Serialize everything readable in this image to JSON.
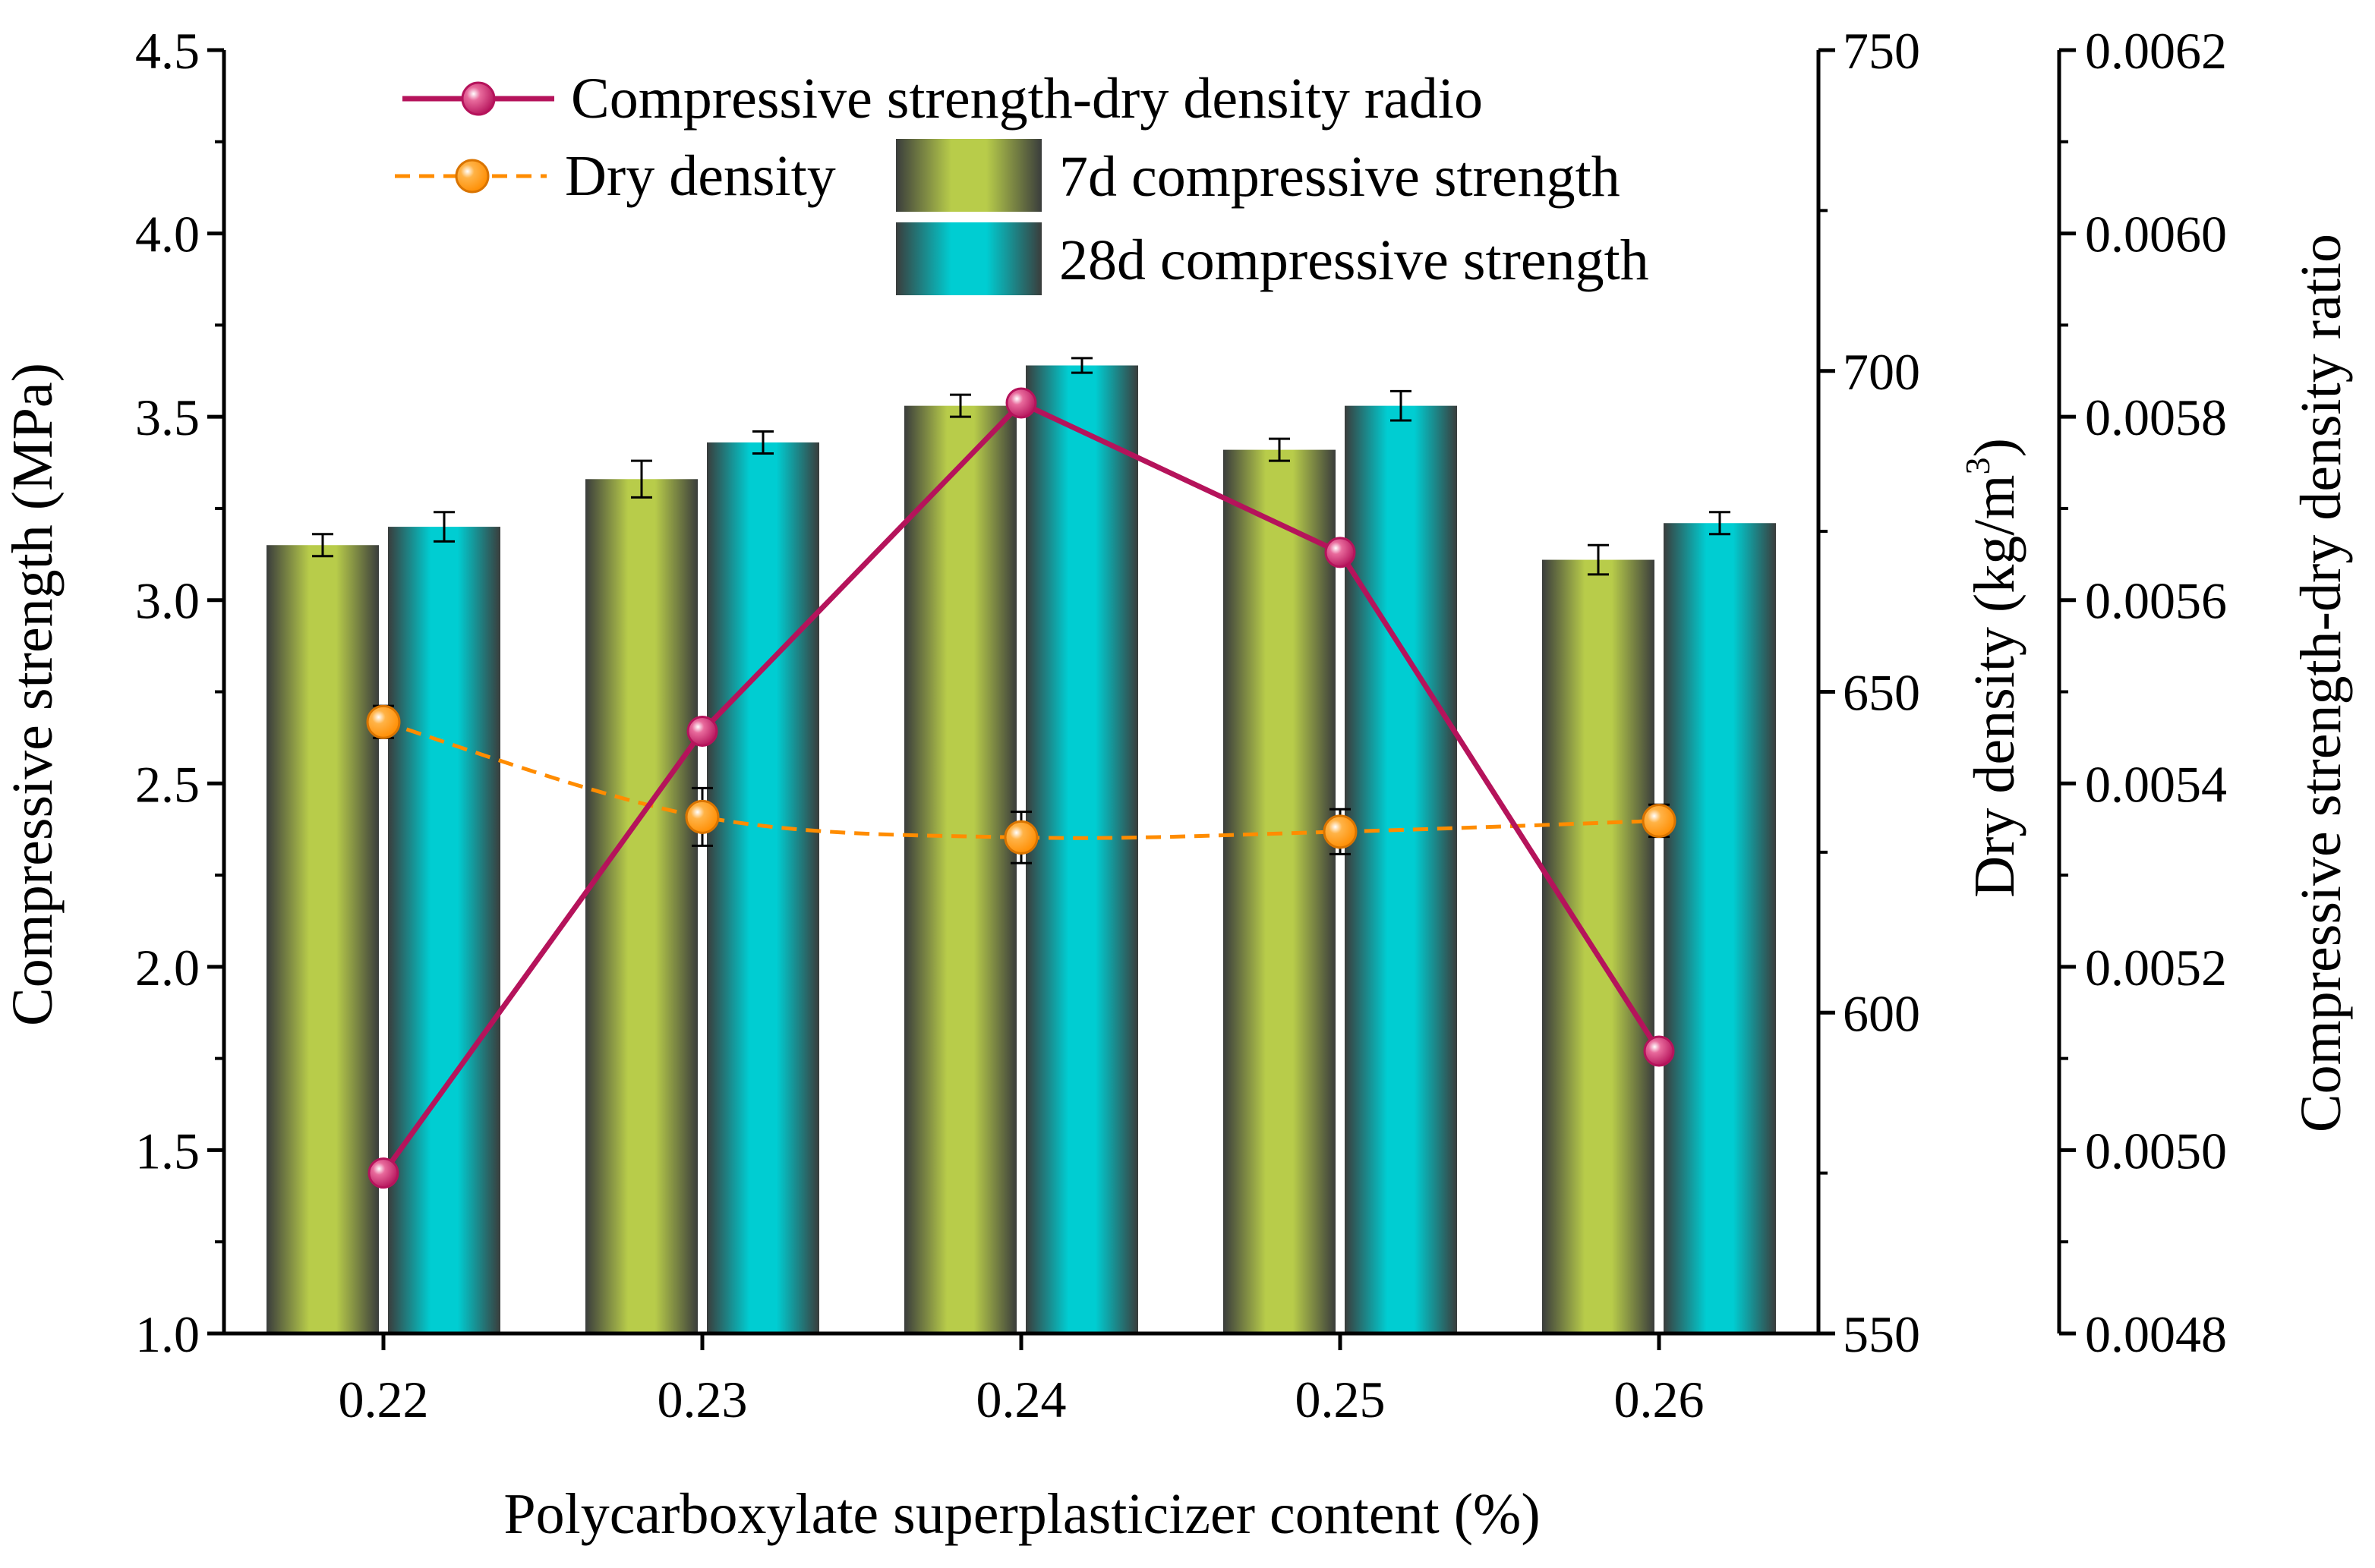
{
  "chart_data": {
    "type": "bar",
    "categories": [
      "0.22",
      "0.23",
      "0.24",
      "0.25",
      "0.26"
    ],
    "xlabel": "Polycarboxylate superplasticizer content (%)",
    "axes": {
      "left": {
        "label": "Compressive strength (MPa)",
        "range": [
          1.0,
          4.5
        ],
        "ticks": [
          "1.0",
          "1.5",
          "2.0",
          "2.5",
          "3.0",
          "3.5",
          "4.0",
          "4.5"
        ]
      },
      "right1": {
        "label_main": "Dry density (kg/m",
        "label_sup": "3",
        "label_end": ")",
        "range": [
          550,
          750
        ],
        "ticks": [
          "550",
          "600",
          "650",
          "700",
          "750"
        ]
      },
      "right2": {
        "label": "Compressive strength-dry density ratio",
        "range": [
          0.0048,
          0.0062
        ],
        "ticks": [
          "0.0048",
          "0.0050",
          "0.0052",
          "0.0054",
          "0.0056",
          "0.0058",
          "0.0060",
          "0.0062"
        ]
      }
    },
    "series": [
      {
        "name": "7d compressive strength",
        "kind": "bar",
        "axis": "left",
        "color": "#b8cc4a",
        "values": [
          3.15,
          3.33,
          3.53,
          3.41,
          3.11
        ],
        "errors": [
          0.03,
          0.05,
          0.03,
          0.03,
          0.04
        ]
      },
      {
        "name": "28d compressive strength",
        "kind": "bar",
        "axis": "left",
        "color": "#00cdd2",
        "values": [
          3.2,
          3.43,
          3.64,
          3.53,
          3.21
        ],
        "errors": [
          0.04,
          0.03,
          0.02,
          0.04,
          0.03
        ]
      },
      {
        "name": "Dry density",
        "kind": "line",
        "style": "dashed",
        "axis": "right1",
        "color": "#ff8c00",
        "values": [
          645.3,
          630.5,
          627.3,
          628.2,
          629.9
        ],
        "errors": [
          2.5,
          4.5,
          4.0,
          3.5,
          2.5
        ]
      },
      {
        "name": "Compressive strength-dry density radio",
        "kind": "line",
        "style": "solid",
        "axis": "right2",
        "color": "#b5135b",
        "values": [
          0.004975,
          0.005457,
          0.005815,
          0.005652,
          0.005108
        ]
      }
    ],
    "legend": {
      "line_entries": [
        "Compressive strength-dry density radio",
        "Dry density"
      ],
      "bar_entries": [
        "7d compressive strength",
        "28d compressive strength"
      ],
      "position": "top"
    }
  }
}
